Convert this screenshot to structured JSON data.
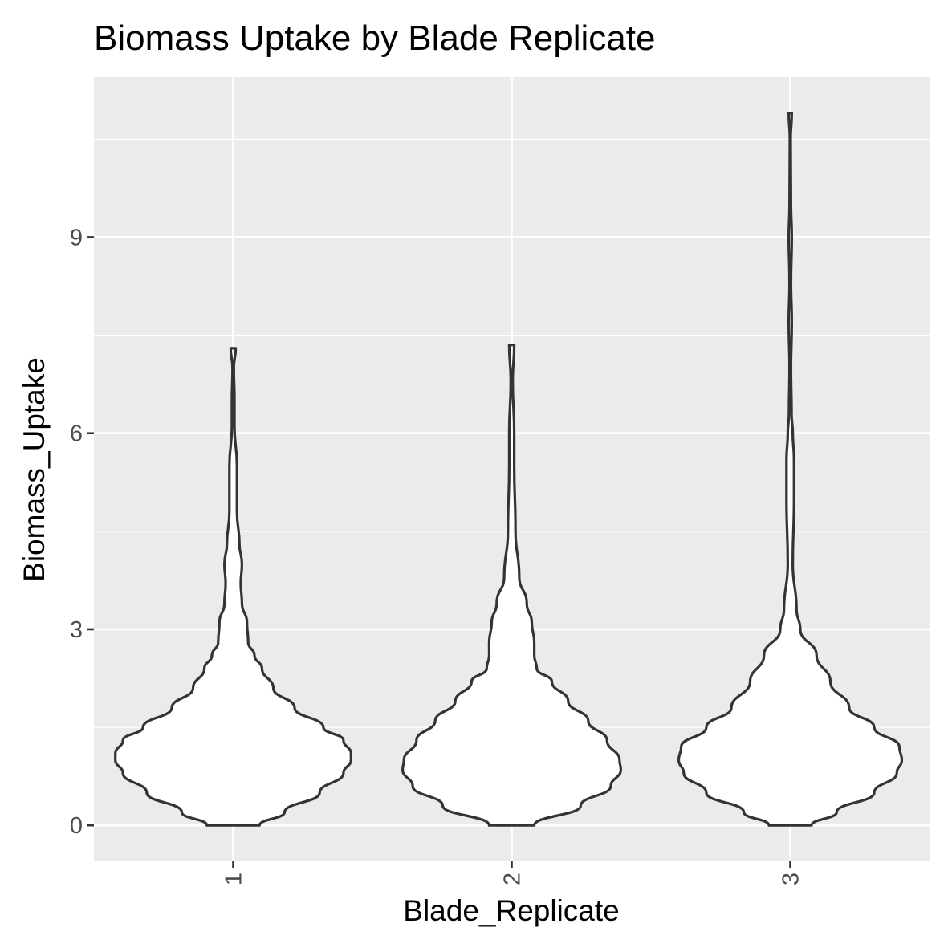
{
  "chart_data": {
    "type": "violin",
    "title": "Biomass Uptake by Blade Replicate",
    "xlabel": "Blade_Replicate",
    "ylabel": "Biomass_Uptake",
    "categories": [
      "1",
      "2",
      "3"
    ],
    "ylim": [
      -0.55,
      11.45
    ],
    "y_ticks": [
      0,
      3,
      6,
      9
    ],
    "y_tick_labels": [
      "0",
      "3",
      "6",
      "9"
    ],
    "grid": true,
    "colors": {
      "panel": "#ebebeb",
      "grid": "#ffffff",
      "outline": "#333333",
      "fill": "#ffffff"
    },
    "series": [
      {
        "category": "1",
        "min": 0.0,
        "max": 7.3,
        "profile": [
          [
            0.0,
            0.21
          ],
          [
            0.2,
            0.41
          ],
          [
            0.5,
            0.69
          ],
          [
            0.8,
            0.88
          ],
          [
            1.0,
            0.94
          ],
          [
            1.1,
            0.94
          ],
          [
            1.3,
            0.88
          ],
          [
            1.5,
            0.72
          ],
          [
            1.8,
            0.49
          ],
          [
            2.1,
            0.32
          ],
          [
            2.4,
            0.23
          ],
          [
            2.6,
            0.17
          ],
          [
            2.8,
            0.12
          ],
          [
            3.1,
            0.11
          ],
          [
            3.4,
            0.07
          ],
          [
            3.7,
            0.06
          ],
          [
            4.0,
            0.07
          ],
          [
            4.3,
            0.05
          ],
          [
            4.8,
            0.03
          ],
          [
            5.5,
            0.03
          ],
          [
            6.1,
            0.01
          ],
          [
            6.5,
            0.01
          ],
          [
            7.0,
            0.005
          ],
          [
            7.3,
            0.02
          ]
        ]
      },
      {
        "category": "2",
        "min": 0.0,
        "max": 7.35,
        "profile": [
          [
            0.0,
            0.18
          ],
          [
            0.3,
            0.55
          ],
          [
            0.6,
            0.79
          ],
          [
            0.85,
            0.87
          ],
          [
            1.0,
            0.86
          ],
          [
            1.3,
            0.76
          ],
          [
            1.6,
            0.61
          ],
          [
            1.9,
            0.45
          ],
          [
            2.2,
            0.32
          ],
          [
            2.4,
            0.2
          ],
          [
            2.6,
            0.18
          ],
          [
            2.8,
            0.18
          ],
          [
            3.1,
            0.16
          ],
          [
            3.4,
            0.12
          ],
          [
            3.8,
            0.06
          ],
          [
            4.5,
            0.03
          ],
          [
            5.5,
            0.02
          ],
          [
            6.0,
            0.02
          ],
          [
            6.8,
            0.008
          ],
          [
            7.35,
            0.02
          ]
        ]
      },
      {
        "category": "3",
        "min": 0.0,
        "max": 10.9,
        "profile": [
          [
            0.0,
            0.17
          ],
          [
            0.2,
            0.37
          ],
          [
            0.5,
            0.67
          ],
          [
            0.8,
            0.85
          ],
          [
            1.0,
            0.89
          ],
          [
            1.2,
            0.87
          ],
          [
            1.5,
            0.67
          ],
          [
            1.8,
            0.47
          ],
          [
            2.2,
            0.32
          ],
          [
            2.6,
            0.21
          ],
          [
            3.0,
            0.08
          ],
          [
            3.3,
            0.05
          ],
          [
            4.0,
            0.02
          ],
          [
            5.0,
            0.03
          ],
          [
            5.6,
            0.03
          ],
          [
            6.0,
            0.02
          ],
          [
            6.3,
            0.01
          ],
          [
            7.0,
            0.006
          ],
          [
            7.7,
            0.012
          ],
          [
            8.3,
            0.006
          ],
          [
            9.0,
            0.012
          ],
          [
            9.5,
            0.006
          ],
          [
            10.5,
            0.003
          ],
          [
            10.9,
            0.012
          ]
        ]
      }
    ]
  }
}
